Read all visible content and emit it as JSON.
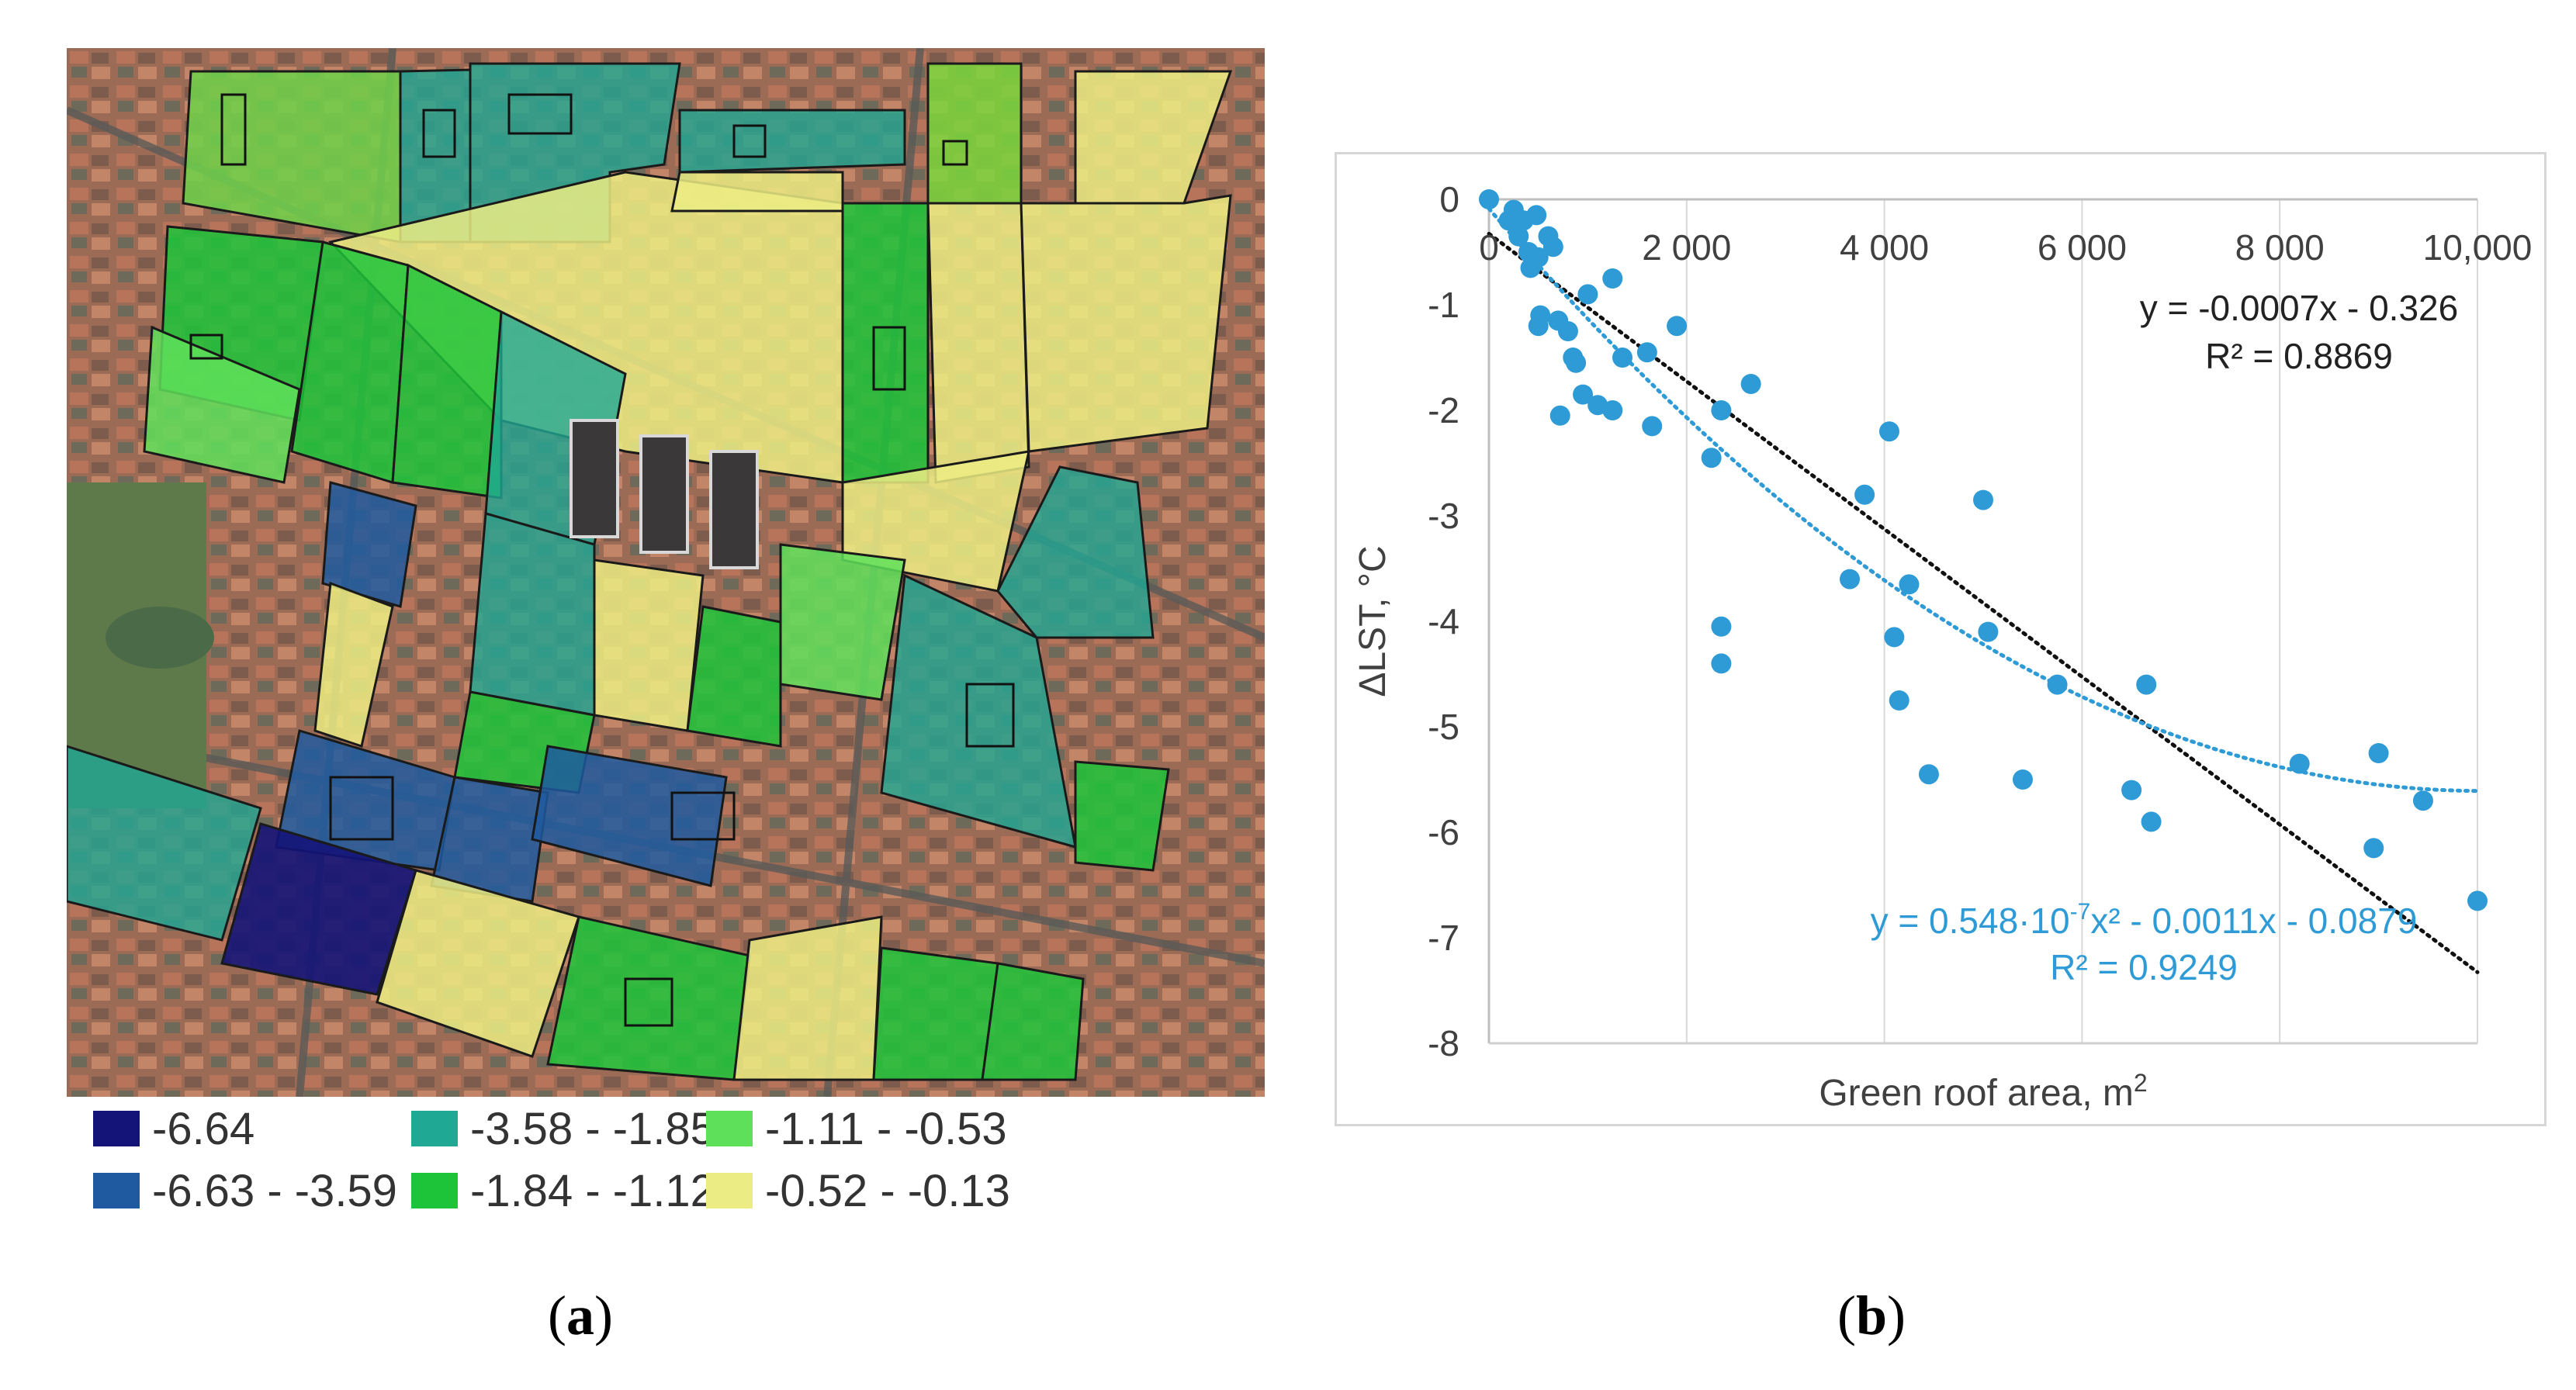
{
  "panel_a": {
    "caption_open": "(",
    "caption_letter": "a",
    "caption_close": ")",
    "legend": [
      {
        "label": "-6.64",
        "color": "#141478"
      },
      {
        "label": "-3.58 - -1.85",
        "color": "#1fa894"
      },
      {
        "label": "-1.11 - -0.53",
        "color": "#5fe05a"
      },
      {
        "label": "-6.63 - -3.59",
        "color": "#1f5aa0"
      },
      {
        "label": "-1.84 - -1.12",
        "color": "#1dc43a"
      },
      {
        "label": "-0.52 - -0.13",
        "color": "#ecec84"
      }
    ]
  },
  "panel_b": {
    "caption_open": "(",
    "caption_letter": "b",
    "caption_close": ")"
  },
  "chart_data": {
    "type": "scatter",
    "title": "",
    "xlabel": "Green roof area, m",
    "xlabel_sup": "2",
    "ylabel": "ΔLST, °C",
    "xlim": [
      0,
      10000
    ],
    "ylim": [
      -8,
      0
    ],
    "x_ticks": [
      0,
      2000,
      4000,
      6000,
      8000,
      10000
    ],
    "x_tick_labels": [
      "0",
      "2 000",
      "4 000",
      "6 000",
      "8 000",
      "10,000"
    ],
    "y_ticks": [
      0,
      -1,
      -2,
      -3,
      -4,
      -5,
      -6,
      -7,
      -8
    ],
    "y_tick_labels": [
      "0",
      "-1",
      "-2",
      "-3",
      "-4",
      "-5",
      "-6",
      "-7",
      "-8"
    ],
    "point_color": "#2e9bd6",
    "points": [
      [
        0,
        0
      ],
      [
        200,
        -0.2
      ],
      [
        250,
        -0.1
      ],
      [
        300,
        -0.35
      ],
      [
        350,
        -0.2
      ],
      [
        400,
        -0.5
      ],
      [
        420,
        -0.65
      ],
      [
        480,
        -0.15
      ],
      [
        500,
        -0.55
      ],
      [
        520,
        -1.1
      ],
      [
        500,
        -1.2
      ],
      [
        600,
        -0.35
      ],
      [
        650,
        -0.45
      ],
      [
        700,
        -1.15
      ],
      [
        720,
        -2.05
      ],
      [
        800,
        -1.25
      ],
      [
        850,
        -1.5
      ],
      [
        880,
        -1.55
      ],
      [
        950,
        -1.85
      ],
      [
        1000,
        -0.9
      ],
      [
        1100,
        -1.95
      ],
      [
        1250,
        -0.75
      ],
      [
        1250,
        -2.0
      ],
      [
        1350,
        -1.5
      ],
      [
        1600,
        -1.45
      ],
      [
        1650,
        -2.15
      ],
      [
        1900,
        -1.2
      ],
      [
        2250,
        -2.45
      ],
      [
        2350,
        -2.0
      ],
      [
        2350,
        -4.05
      ],
      [
        2350,
        -4.4
      ],
      [
        2650,
        -1.75
      ],
      [
        3650,
        -3.6
      ],
      [
        3800,
        -2.8
      ],
      [
        4050,
        -2.2
      ],
      [
        4100,
        -4.15
      ],
      [
        4150,
        -4.75
      ],
      [
        4250,
        -3.65
      ],
      [
        4450,
        -5.45
      ],
      [
        5000,
        -2.85
      ],
      [
        5050,
        -4.1
      ],
      [
        5400,
        -5.5
      ],
      [
        5750,
        -4.6
      ],
      [
        6500,
        -5.6
      ],
      [
        6650,
        -4.6
      ],
      [
        6700,
        -5.9
      ],
      [
        8200,
        -5.35
      ],
      [
        8950,
        -6.15
      ],
      [
        9000,
        -5.25
      ],
      [
        9450,
        -5.7
      ],
      [
        10000,
        -6.65
      ]
    ],
    "linear_fit": {
      "equation": "y = -0.0007x - 0.326",
      "r2": "R² = 0.8869",
      "slope": -0.0007,
      "intercept": -0.326,
      "color": "#111111"
    },
    "quadratic_fit": {
      "equation": "y = 0.548·10",
      "eq_exp": "-7",
      "eq_rest": "x² - 0.0011x - 0.0879",
      "r2": "R² = 0.9249",
      "a": 5.48e-08,
      "b": -0.0011,
      "c": -0.0879,
      "color": "#2e9bd6"
    }
  }
}
